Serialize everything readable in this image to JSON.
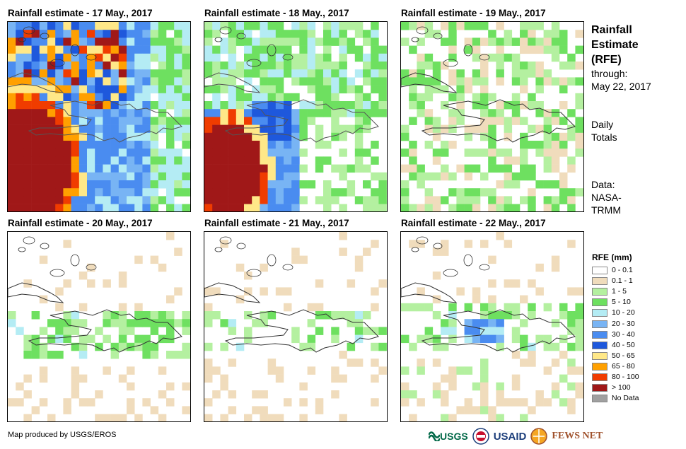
{
  "panels": [
    {
      "title": "Rainfall estimate - 17 May., 2017"
    },
    {
      "title": "Rainfall estimate - 18 May., 2017"
    },
    {
      "title": "Rainfall estimate - 19 May., 2017"
    },
    {
      "title": "Rainfall estimate - 20 May., 2017"
    },
    {
      "title": "Rainfall estimate - 21 May., 2017"
    },
    {
      "title": "Rainfall estimate - 22 May., 2017"
    }
  ],
  "side": {
    "title_line1": "Rainfall",
    "title_line2": "Estimate",
    "title_line3": "(RFE)",
    "through_label": "through:",
    "through_date": "May 22, 2017",
    "daily1": "Daily",
    "daily2": "Totals",
    "data1": "Data:",
    "data2": "NASA-",
    "data3": "TRMM"
  },
  "legend": {
    "title": "RFE (mm)",
    "items": [
      {
        "label": "0 - 0.1",
        "color": "#ffffff"
      },
      {
        "label": "0.1 - 1",
        "color": "#f0dcbc"
      },
      {
        "label": "1 - 5",
        "color": "#b4f0a0"
      },
      {
        "label": "5 - 10",
        "color": "#6ee060"
      },
      {
        "label": "10 - 20",
        "color": "#b4ecf4"
      },
      {
        "label": "20 - 30",
        "color": "#78b4f4"
      },
      {
        "label": "30 - 40",
        "color": "#4a8cf0"
      },
      {
        "label": "40 - 50",
        "color": "#1e58dc"
      },
      {
        "label": "50 - 65",
        "color": "#ffe888"
      },
      {
        "label": "65 - 80",
        "color": "#ffa000"
      },
      {
        "label": "80 - 100",
        "color": "#f03c00"
      },
      {
        "label": "> 100",
        "color": "#a01818"
      },
      {
        "label": "No Data",
        "color": "#a0a0a0"
      }
    ]
  },
  "credit": "Map produced by USGS/EROS",
  "logos": {
    "usgs": "USGS",
    "usaid": "USAID",
    "fews": "FEWS NET"
  }
}
